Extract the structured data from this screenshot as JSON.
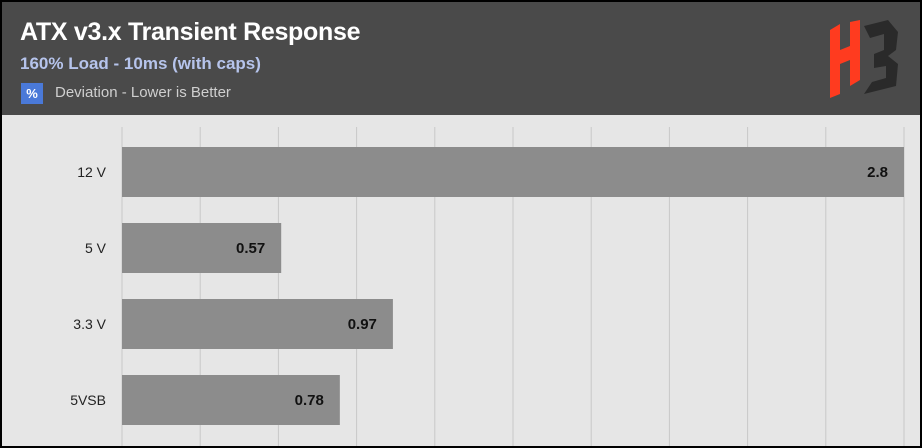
{
  "header": {
    "title": "ATX v3.x Transient Response",
    "subtitle": "160% Load - 10ms (with caps)",
    "unit_badge": "%",
    "legend_text": "Deviation - Lower is Better"
  },
  "logo": {
    "icon": "hb-logo-icon",
    "colors": [
      "#ff3b1f",
      "#2a2a2a"
    ]
  },
  "colors": {
    "header_bg": "#4a4a4a",
    "plot_bg": "#e6e6e6",
    "bar": "#8c8c8c",
    "subtitle": "#b6c4ec",
    "badge": "#4a79d8"
  },
  "chart_data": {
    "type": "bar",
    "orientation": "horizontal",
    "categories": [
      "12 V",
      "5 V",
      "3.3 V",
      "5VSB"
    ],
    "values": [
      2.8,
      0.57,
      0.97,
      0.78
    ],
    "value_labels": [
      "2.8",
      "0.57",
      "0.97",
      "0.78"
    ],
    "xlim": [
      0,
      2.8
    ],
    "grid": true,
    "unit": "%"
  }
}
